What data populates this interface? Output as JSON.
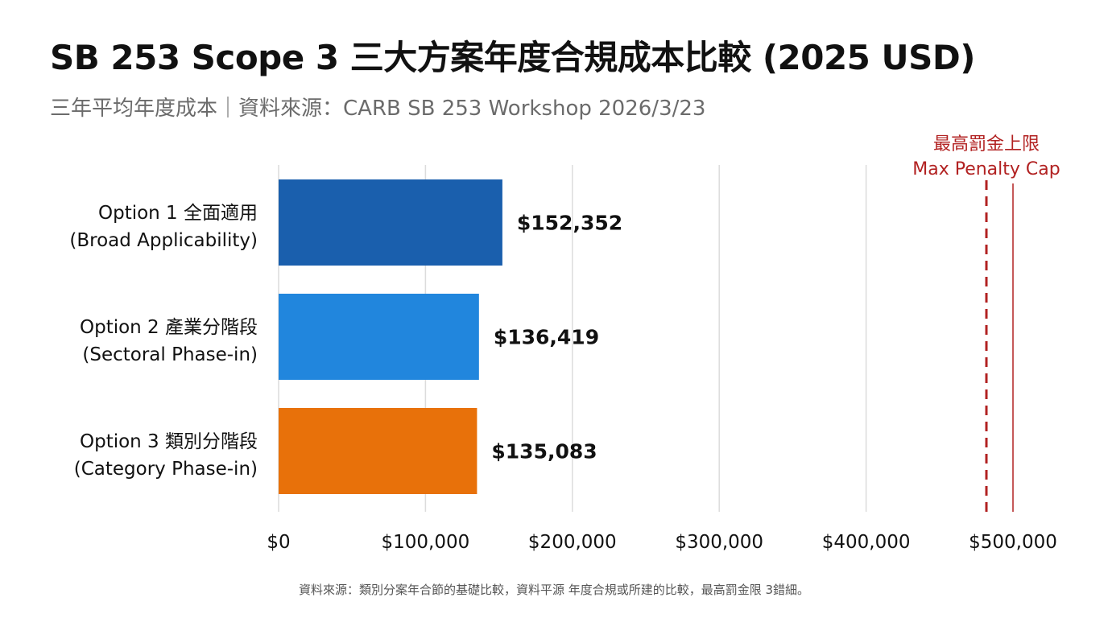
{
  "title": "SB 253 Scope 3 三大方案年度合規成本比較 (2025 USD)",
  "subtitle": "三年平均年度成本｜資料來源：CARB SB 253 Workshop 2026/3/23",
  "footnote": "資料來源：類別分案年合節的基礎比較，資料平源 年度合規或所建的比較，最高罰金限 3錯細。",
  "chart_data": {
    "type": "bar",
    "orientation": "horizontal",
    "categories": [
      [
        "Option 1 全面適用",
        "(Broad Applicability)"
      ],
      [
        "Option 2 產業分階段",
        "(Sectoral Phase-in)"
      ],
      [
        "Option 3 類別分階段",
        "(Category Phase-in)"
      ]
    ],
    "values": [
      152352,
      136419,
      135083
    ],
    "value_labels": [
      "$152,352",
      "$136,419",
      "$135,083"
    ],
    "bar_colors": [
      "#1a5fad",
      "#2186dd",
      "#e8710a"
    ],
    "xlim": [
      0,
      500000
    ],
    "x_ticks": [
      0,
      100000,
      200000,
      300000,
      400000,
      500000
    ],
    "x_tick_labels": [
      "$0",
      "$100,000",
      "$200,000",
      "$300,000",
      "$400,000",
      "$500,000"
    ],
    "grid": "vertical",
    "reference_line": {
      "label": [
        "最高罰金上限",
        "Max Penalty Cap"
      ],
      "color": "#b22222"
    }
  }
}
